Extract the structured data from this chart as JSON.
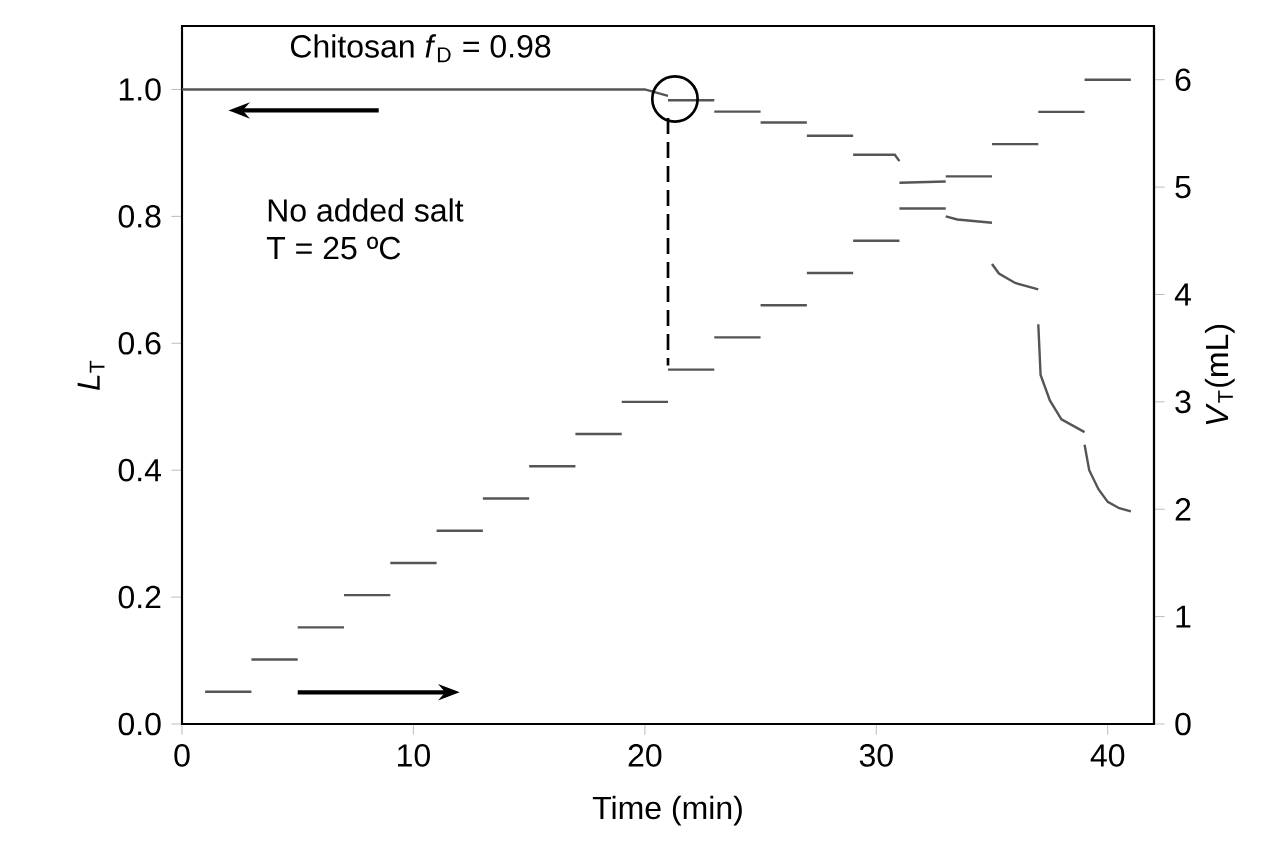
{
  "chart_data": {
    "type": "line",
    "xlabel": "Time (min)",
    "ylabel": "*L*$_{T}$",
    "y2label": "*V*$_{T}$(mL)",
    "xlim": [
      0,
      42
    ],
    "ylim": [
      0,
      1.1
    ],
    "y2lim": [
      0,
      6.5
    ],
    "marker": "none",
    "xticks": [
      0,
      10,
      20,
      30,
      40
    ],
    "yticks": [
      {
        "value": 0,
        "label": "0.0"
      },
      0.2,
      0.4,
      0.6,
      0.8,
      {
        "value": 1,
        "label": "1.0"
      }
    ],
    "y2ticks": [
      0,
      1,
      2,
      3,
      4,
      5,
      6
    ],
    "series": [
      {
        "color": "#555555",
        "axis": "y",
        "x": [
          0,
          20,
          21,
          null,
          21,
          23,
          null,
          23,
          25,
          null,
          25,
          27,
          null,
          27,
          29,
          null,
          29,
          30.8,
          31,
          null,
          31,
          33,
          null,
          33,
          33.5,
          35,
          null,
          35,
          35.3,
          36,
          37,
          null,
          37,
          37.1,
          37.5,
          38,
          39,
          null,
          39,
          39.2,
          39.6,
          40,
          40.5,
          41
        ],
        "values": [
          1.0,
          1.0,
          0.99,
          null,
          0.983,
          0.983,
          null,
          0.965,
          0.965,
          null,
          0.948,
          0.948,
          null,
          0.927,
          0.927,
          null,
          0.897,
          0.897,
          0.887,
          null,
          0.853,
          0.855,
          null,
          0.8,
          0.795,
          0.79,
          null,
          0.725,
          0.71,
          0.695,
          0.685,
          null,
          0.63,
          0.55,
          0.51,
          0.48,
          0.46,
          null,
          0.44,
          0.4,
          0.37,
          0.35,
          0.34,
          0.335
        ]
      },
      {
        "color": "#555555",
        "axis": "y2",
        "x": [
          1,
          3,
          null,
          3,
          5,
          null,
          5,
          7,
          null,
          7,
          9,
          null,
          9,
          11,
          null,
          11,
          13,
          null,
          13,
          15,
          null,
          15,
          17,
          null,
          17,
          19,
          null,
          19,
          21,
          null,
          21,
          23,
          null,
          23,
          25,
          null,
          25,
          27,
          null,
          27,
          29,
          null,
          29,
          31,
          null,
          31,
          33,
          null,
          33,
          35,
          null,
          35,
          37,
          null,
          37,
          39,
          null,
          39,
          41
        ],
        "values": [
          0.3,
          0.3,
          null,
          0.6,
          0.6,
          null,
          0.9,
          0.9,
          null,
          1.2,
          1.2,
          null,
          1.5,
          1.5,
          null,
          1.8,
          1.8,
          null,
          2.1,
          2.1,
          null,
          2.4,
          2.4,
          null,
          2.7,
          2.7,
          null,
          3.0,
          3.0,
          null,
          3.3,
          3.3,
          null,
          3.6,
          3.6,
          null,
          3.9,
          3.9,
          null,
          4.2,
          4.2,
          null,
          4.5,
          4.5,
          null,
          4.8,
          4.8,
          null,
          5.1,
          5.1,
          null,
          5.4,
          5.4,
          null,
          5.7,
          5.7,
          null,
          6.0,
          6.0
        ]
      }
    ],
    "annotations": [
      "Chitosan *f*$_{D}$ = 0.98",
      "No added salt",
      "T = 25 ºC"
    ]
  }
}
